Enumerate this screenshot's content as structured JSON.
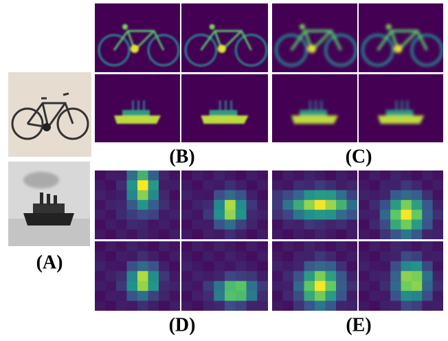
{
  "labels": [
    "(A)",
    "(B)",
    "(C)",
    "(D)",
    "(E)"
  ]
}
